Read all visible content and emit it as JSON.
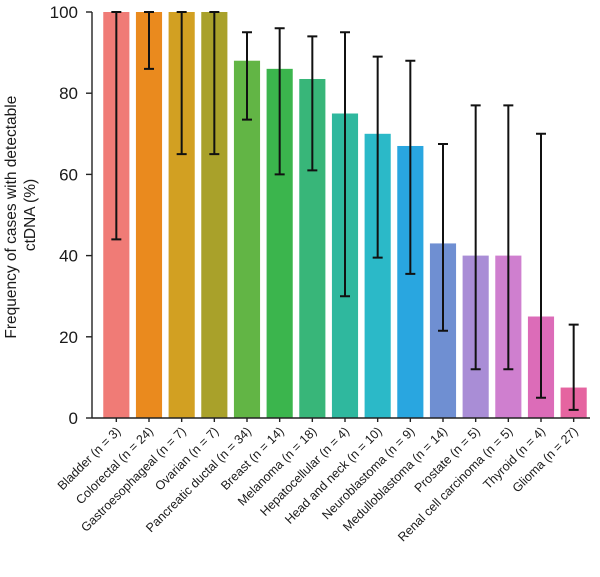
{
  "chart_data": {
    "type": "bar",
    "title": "",
    "xlabel": "",
    "ylabel_lines": [
      "Frequency of cases with detectable",
      "ctDNA (%)"
    ],
    "ylim": [
      0,
      100
    ],
    "yticks": [
      "0",
      "20",
      "40",
      "60",
      "80",
      "100"
    ],
    "grid": false,
    "categories": [
      "Bladder (n = 3)",
      "Colorectal (n = 24)",
      "Gastroesophageal (n = 7)",
      "Ovarian (n = 7)",
      "Pancreatic ductal (n = 34)",
      "Breast (n = 14)",
      "Melanoma (n = 18)",
      "Hepatocellular (n = 4)",
      "Head and neck (n = 10)",
      "Neuroblastoma (n = 9)",
      "Medulloblastoma (n = 14)",
      "Prostate (n = 5)",
      "Renal cell carcinoma (n = 5)",
      "Thyroid (n = 4)",
      "Glioma (n = 27)"
    ],
    "values": [
      100,
      100,
      100,
      100,
      88,
      86,
      83.5,
      75,
      70,
      67,
      43,
      40,
      40,
      25,
      7.5
    ],
    "error_low": [
      44,
      86,
      65,
      65,
      73.5,
      60,
      61,
      30,
      39.5,
      35.5,
      21.5,
      12,
      12,
      5,
      2
    ],
    "error_high": [
      100,
      100,
      100,
      100,
      95,
      96,
      94,
      95,
      89,
      88,
      67.5,
      77,
      77,
      70,
      23
    ],
    "colors": [
      "#f07b76",
      "#ea8a1e",
      "#d2a022",
      "#a9a12a",
      "#62b545",
      "#3bb54d",
      "#38b679",
      "#2fb89e",
      "#2bb9c8",
      "#29a6e0",
      "#6f8fd2",
      "#a98dd6",
      "#cf7fcf",
      "#dc6cb8",
      "#e564a0"
    ]
  }
}
